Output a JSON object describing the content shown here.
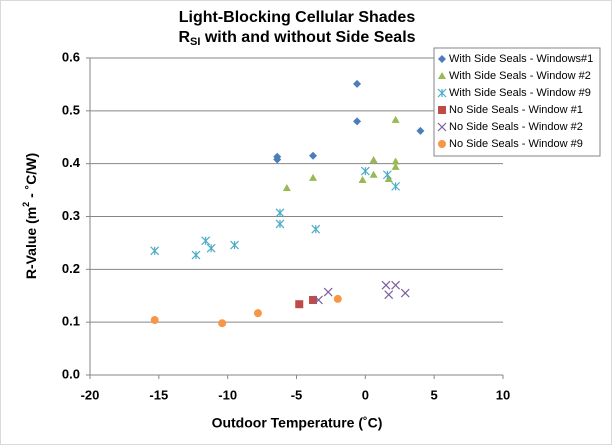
{
  "chart_data": {
    "type": "scatter",
    "title": "Light-Blocking Cellular Shades",
    "subtitle": {
      "text": "R",
      "sub": "SI",
      "rest": " with and without Side Seals"
    },
    "x_label": "Outdoor Temperature (˚C)",
    "y_label": {
      "text": "R-Value (m",
      "sup": "2",
      "rest": " - ˚C/W)"
    },
    "xlim": [
      -20,
      10
    ],
    "xticks": [
      -20,
      -15,
      -10,
      -5,
      0,
      5,
      10
    ],
    "ylim": [
      0,
      0.6
    ],
    "yticks": [
      {
        "value": 0,
        "label": "0.0"
      },
      0.1,
      0.2,
      0.3,
      0.4,
      0.5,
      0.6
    ],
    "grid": true,
    "legend": "top-right",
    "series": [
      {
        "name": "With Side Seals - Windows#1",
        "color": "#4a7ebb",
        "marker": "diamond",
        "x": [
          -6.4,
          -6.4,
          -3.8,
          -0.6,
          -0.6,
          4.0
        ],
        "values": [
          0.413,
          0.408,
          0.415,
          0.551,
          0.48,
          0.462
        ]
      },
      {
        "name": "With Side Seals - Window #2",
        "color": "#98b954",
        "marker": "triangle",
        "x": [
          -5.7,
          -3.8,
          -0.2,
          0.6,
          0.6,
          1.7,
          2.2,
          2.2,
          2.2
        ],
        "values": [
          0.354,
          0.373,
          0.369,
          0.407,
          0.379,
          0.371,
          0.404,
          0.394,
          0.483
        ]
      },
      {
        "name": "With Side Seals - Window #9",
        "color": "#4bacc6",
        "marker": "asterisk",
        "x": [
          -15.3,
          -12.3,
          -11.6,
          -11.2,
          -9.5,
          -6.2,
          -6.2,
          -3.6,
          0,
          1.6,
          2.2
        ],
        "values": [
          0.235,
          0.227,
          0.254,
          0.24,
          0.246,
          0.307,
          0.286,
          0.276,
          0.386,
          0.379,
          0.357
        ]
      },
      {
        "name": "No Side Seals - Window #1",
        "color": "#be4b48",
        "marker": "square",
        "x": [
          -4.8,
          -3.8
        ],
        "values": [
          0.134,
          0.142
        ]
      },
      {
        "name": "No Side Seals - Window #2",
        "color": "#7d60a0",
        "marker": "x",
        "x": [
          -3.4,
          -2.7,
          1.5,
          1.7,
          2.2,
          2.9
        ],
        "values": [
          0.142,
          0.157,
          0.17,
          0.152,
          0.17,
          0.155
        ]
      },
      {
        "name": "No Side Seals - Window #9",
        "color": "#f79646",
        "marker": "circle",
        "x": [
          -15.3,
          -10.4,
          -7.8,
          -2.0
        ],
        "values": [
          0.104,
          0.098,
          0.117,
          0.144
        ]
      }
    ]
  }
}
